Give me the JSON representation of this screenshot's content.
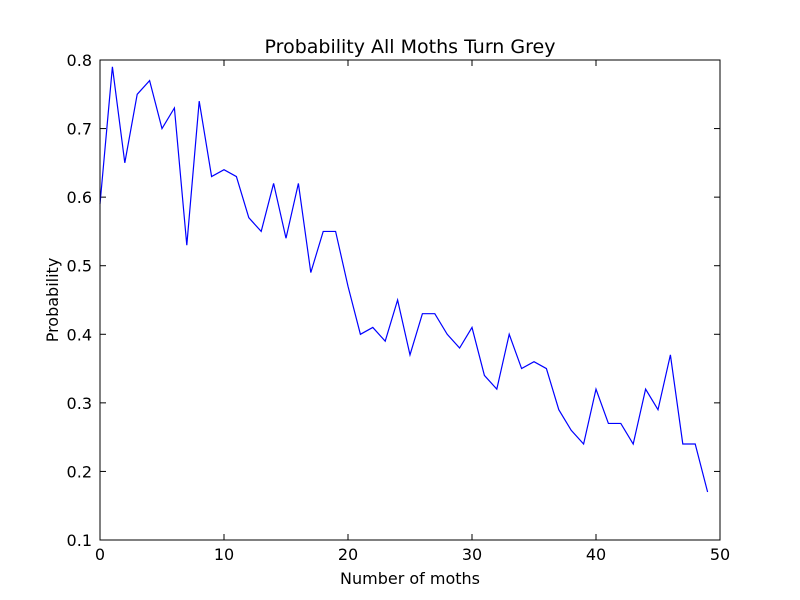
{
  "chart_data": {
    "type": "line",
    "title": "Probability All Moths Turn Grey",
    "xlabel": "Number of moths",
    "ylabel": "Probability",
    "xlim": [
      0,
      50
    ],
    "ylim": [
      0.1,
      0.8
    ],
    "xticks": [
      0,
      10,
      20,
      30,
      40,
      50
    ],
    "xtick_labels": [
      "0",
      "10",
      "20",
      "30",
      "40",
      "50"
    ],
    "yticks": [
      0.1,
      0.2,
      0.3,
      0.4,
      0.5,
      0.6,
      0.7,
      0.8
    ],
    "ytick_labels": [
      "0.1",
      "0.2",
      "0.3",
      "0.4",
      "0.5",
      "0.6",
      "0.7",
      "0.8"
    ],
    "grid": false,
    "series": [
      {
        "color": "#0000ff",
        "x": [
          0,
          1,
          2,
          3,
          4,
          5,
          6,
          7,
          8,
          9,
          10,
          11,
          12,
          13,
          14,
          15,
          16,
          17,
          18,
          19,
          20,
          21,
          22,
          23,
          24,
          25,
          26,
          27,
          28,
          29,
          30,
          31,
          32,
          33,
          34,
          35,
          36,
          37,
          38,
          39,
          40,
          41,
          42,
          43,
          44,
          45,
          46,
          47,
          48,
          49
        ],
        "values": [
          0.59,
          0.79,
          0.65,
          0.75,
          0.77,
          0.7,
          0.73,
          0.53,
          0.74,
          0.63,
          0.64,
          0.63,
          0.57,
          0.55,
          0.62,
          0.54,
          0.62,
          0.49,
          0.55,
          0.55,
          0.47,
          0.4,
          0.41,
          0.39,
          0.45,
          0.37,
          0.43,
          0.43,
          0.4,
          0.38,
          0.41,
          0.34,
          0.32,
          0.4,
          0.35,
          0.36,
          0.35,
          0.29,
          0.26,
          0.24,
          0.32,
          0.27,
          0.27,
          0.24,
          0.32,
          0.29,
          0.37,
          0.24,
          0.24,
          0.17
        ]
      }
    ]
  }
}
